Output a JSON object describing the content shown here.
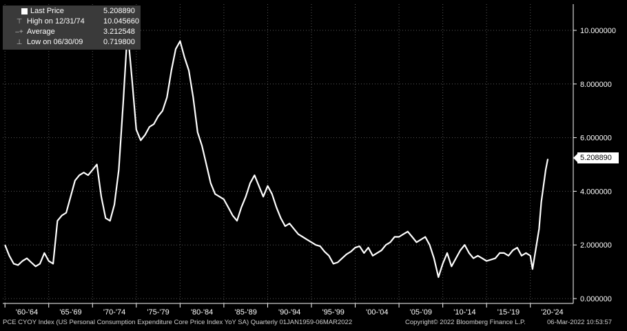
{
  "chart_data": {
    "type": "line",
    "series": [
      {
        "name": "Last Price",
        "x": [
          1960,
          1960.5,
          1961,
          1961.5,
          1962,
          1962.5,
          1963,
          1963.5,
          1964,
          1964.5,
          1965,
          1965.5,
          1966,
          1966.5,
          1967,
          1967.5,
          1968,
          1968.5,
          1969,
          1969.5,
          1970,
          1970.5,
          1971,
          1971.5,
          1972,
          1972.5,
          1973,
          1973.5,
          1974,
          1974.5,
          1975,
          1975.5,
          1976,
          1976.5,
          1977,
          1977.5,
          1978,
          1978.5,
          1979,
          1979.5,
          1980,
          1980.5,
          1981,
          1981.5,
          1982,
          1982.5,
          1983,
          1983.5,
          1984,
          1984.5,
          1985,
          1985.5,
          1986,
          1986.5,
          1987,
          1987.5,
          1988,
          1988.5,
          1989,
          1989.5,
          1990,
          1990.5,
          1991,
          1991.5,
          1992,
          1992.5,
          1993,
          1993.5,
          1994,
          1994.5,
          1995,
          1995.5,
          1996,
          1996.5,
          1997,
          1997.5,
          1998,
          1998.5,
          1999,
          1999.5,
          2000,
          2000.5,
          2001,
          2001.5,
          2002,
          2002.5,
          2003,
          2003.5,
          2004,
          2004.5,
          2005,
          2005.5,
          2006,
          2006.5,
          2007,
          2007.5,
          2008,
          2008.5,
          2009,
          2009.5,
          2010,
          2010.5,
          2011,
          2011.5,
          2012,
          2012.5,
          2013,
          2013.5,
          2014,
          2014.5,
          2015,
          2015.5,
          2016,
          2016.5,
          2017,
          2017.5,
          2018,
          2018.5,
          2019,
          2019.5,
          2020,
          2020.25,
          2020.5,
          2021,
          2021.25,
          2021.5,
          2021.75,
          2022
        ],
        "y": [
          2.0,
          1.6,
          1.3,
          1.25,
          1.4,
          1.5,
          1.35,
          1.2,
          1.3,
          1.7,
          1.4,
          1.3,
          2.9,
          3.1,
          3.2,
          3.8,
          4.4,
          4.6,
          4.7,
          4.6,
          4.8,
          5.0,
          3.8,
          3.0,
          2.9,
          3.5,
          4.8,
          7.3,
          10.0,
          8.2,
          6.3,
          5.9,
          6.1,
          6.4,
          6.5,
          6.8,
          7.0,
          7.5,
          8.5,
          9.3,
          9.6,
          9.0,
          8.5,
          7.5,
          6.2,
          5.7,
          5.0,
          4.3,
          3.9,
          3.8,
          3.7,
          3.4,
          3.1,
          2.9,
          3.4,
          3.8,
          4.3,
          4.6,
          4.2,
          3.8,
          4.2,
          3.9,
          3.4,
          3.0,
          2.7,
          2.8,
          2.6,
          2.4,
          2.3,
          2.2,
          2.1,
          2.0,
          1.95,
          1.75,
          1.6,
          1.3,
          1.35,
          1.5,
          1.65,
          1.75,
          1.9,
          1.95,
          1.7,
          1.9,
          1.6,
          1.7,
          1.8,
          2.0,
          2.1,
          2.3,
          2.3,
          2.4,
          2.5,
          2.3,
          2.1,
          2.2,
          2.3,
          2.0,
          1.5,
          0.8,
          1.3,
          1.7,
          1.2,
          1.5,
          1.8,
          2.0,
          1.7,
          1.5,
          1.6,
          1.5,
          1.4,
          1.45,
          1.5,
          1.7,
          1.7,
          1.6,
          1.8,
          1.9,
          1.6,
          1.7,
          1.6,
          1.1,
          1.6,
          2.6,
          3.6,
          4.2,
          4.8,
          5.20889
        ]
      }
    ],
    "ylim": [
      0,
      11
    ],
    "xlim": [
      1959.75,
      2024.9
    ],
    "y_ticks": [
      "0.000000",
      "2.000000",
      "4.000000",
      "6.000000",
      "8.000000",
      "10.000000"
    ],
    "x_tick_labels": [
      "'60-'64",
      "'65-'69",
      "'70-'74",
      "'75-'79",
      "'80-'84",
      "'85-'89",
      "'90-'94",
      "'95-'99",
      "'00-'04",
      "'05-'09",
      "'10-'14",
      "'15-'19",
      "'20-'24"
    ],
    "grid": true,
    "legend_position": "top-left",
    "line_color": "#ffffff",
    "grid_color": "#5a5a5a",
    "last_price_box": "5.208890"
  },
  "legend": {
    "last_price_label": "Last Price",
    "last_price_value": "5.208890",
    "high_label": "High on 12/31/74",
    "high_value": "10.045660",
    "average_label": "Average",
    "average_value": "3.212548",
    "low_label": "Low on 06/30/09",
    "low_value": "0.719800"
  },
  "footer": {
    "description": "PCE CYOY Index (US Personal Consumption Expenditure Core Price Index YoY SA)  Quarterly 01JAN1959-06MAR2022",
    "copyright": "Copyright© 2022 Bloomberg Finance L.P.",
    "timestamp": "06-Mar-2022 10:53:57"
  }
}
